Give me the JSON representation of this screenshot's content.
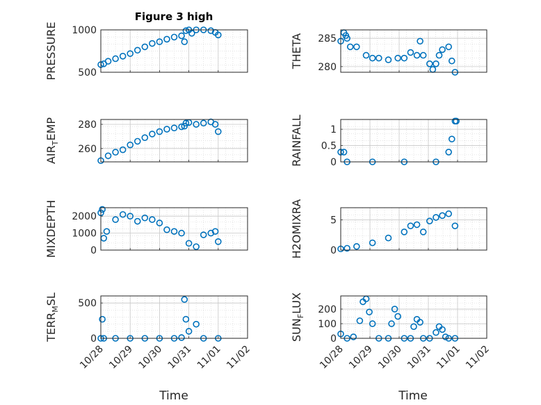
{
  "figure": {
    "title": "Figure 3 high",
    "x_axis_label": "Time",
    "marker_color": "#0072bd"
  },
  "chart_data": [
    {
      "type": "scatter",
      "ylabel": "PRESSURE",
      "xticks": [
        "10/28",
        "10/29",
        "10/30",
        "10/31",
        "11/01",
        "11/02"
      ],
      "xlim": [
        0,
        5
      ],
      "ylim": [
        500,
        1000
      ],
      "yticks": [
        500,
        1000
      ],
      "grid": true,
      "x": [
        0.0,
        0.1,
        0.25,
        0.5,
        0.75,
        1.0,
        1.25,
        1.5,
        1.75,
        2.0,
        2.25,
        2.5,
        2.75,
        2.85,
        2.9,
        3.0,
        3.1,
        3.25,
        3.5,
        3.75,
        3.9,
        4.0
      ],
      "y": [
        590,
        600,
        630,
        660,
        690,
        720,
        760,
        800,
        840,
        860,
        890,
        915,
        930,
        860,
        990,
        1000,
        960,
        1000,
        1000,
        990,
        970,
        940
      ]
    },
    {
      "type": "scatter",
      "ylabel": "THETA",
      "xticks": [
        "10/28",
        "10/29",
        "10/30",
        "10/31",
        "11/01",
        "11/02"
      ],
      "xlim": [
        0,
        2.3
      ],
      "ylim": [
        279,
        286.5
      ],
      "yticks": [
        280,
        285
      ],
      "grid": true,
      "x": [
        0.0,
        0.05,
        0.08,
        0.1,
        0.15,
        0.25,
        0.4,
        0.5,
        0.6,
        0.75,
        0.9,
        1.0,
        1.1,
        1.2,
        1.25,
        1.3,
        1.4,
        1.45,
        1.5,
        1.55,
        1.6,
        1.7,
        1.75,
        1.8
      ],
      "y": [
        284.5,
        286,
        285.5,
        285,
        283.5,
        283.5,
        282,
        281.5,
        281.5,
        281.2,
        281.5,
        281.5,
        282.5,
        282,
        284.5,
        282,
        280.5,
        279.5,
        280.5,
        282,
        283,
        283.5,
        281,
        279
      ]
    },
    {
      "type": "scatter",
      "ylabel": "AIR_TEMP",
      "xticks": [
        "10/28",
        "10/29",
        "10/30",
        "10/31",
        "11/01",
        "11/02"
      ],
      "xlim": [
        0,
        5
      ],
      "ylim": [
        249,
        284
      ],
      "yticks": [
        260,
        280
      ],
      "grid": true,
      "x": [
        0.0,
        0.25,
        0.5,
        0.75,
        1.0,
        1.25,
        1.5,
        1.75,
        2.0,
        2.25,
        2.5,
        2.75,
        2.85,
        2.9,
        3.0,
        3.25,
        3.5,
        3.75,
        3.9,
        4.0
      ],
      "y": [
        250,
        254,
        257,
        259,
        263,
        266,
        269,
        272,
        274,
        276,
        277,
        278,
        278.5,
        281,
        281.5,
        280,
        281,
        282,
        280,
        274
      ]
    },
    {
      "type": "scatter",
      "ylabel": "RAINFALL",
      "xticks": [
        "10/28",
        "10/29",
        "10/30",
        "10/31",
        "11/01",
        "11/02"
      ],
      "xlim": [
        0,
        2.3
      ],
      "ylim": [
        0,
        1.3
      ],
      "yticks": [
        0,
        0.5,
        1
      ],
      "grid": true,
      "x": [
        0.0,
        0.05,
        0.1,
        0.5,
        1.0,
        1.5,
        1.7,
        1.75,
        1.8,
        1.82
      ],
      "y": [
        0.3,
        0.3,
        0.0,
        0.0,
        0.0,
        0.0,
        0.3,
        0.7,
        1.25,
        1.25
      ]
    },
    {
      "type": "scatter",
      "ylabel": "MIXDEPTH",
      "xticks": [
        "10/28",
        "10/29",
        "10/30",
        "10/31",
        "11/01",
        "11/02"
      ],
      "xlim": [
        0,
        5
      ],
      "ylim": [
        0,
        2500
      ],
      "yticks": [
        0,
        1000,
        2000
      ],
      "grid": true,
      "x": [
        0.0,
        0.05,
        0.1,
        0.2,
        0.5,
        0.75,
        1.0,
        1.25,
        1.5,
        1.75,
        2.0,
        2.25,
        2.5,
        2.75,
        3.0,
        3.25,
        3.5,
        3.75,
        3.9,
        4.0
      ],
      "y": [
        2200,
        2400,
        700,
        1100,
        1800,
        2100,
        2000,
        1700,
        1900,
        1800,
        1600,
        1200,
        1100,
        1000,
        400,
        200,
        900,
        1000,
        1100,
        500
      ]
    },
    {
      "type": "scatter",
      "ylabel": "H2OMIXRA",
      "xticks": [
        "10/28",
        "10/29",
        "10/30",
        "10/31",
        "11/01",
        "11/02"
      ],
      "xlim": [
        0,
        2.3
      ],
      "ylim": [
        0,
        7
      ],
      "yticks": [
        0,
        5
      ],
      "grid": true,
      "x": [
        0.0,
        0.1,
        0.25,
        0.5,
        0.75,
        1.0,
        1.1,
        1.2,
        1.3,
        1.4,
        1.5,
        1.6,
        1.7,
        1.8
      ],
      "y": [
        0.2,
        0.3,
        0.6,
        1.2,
        2.0,
        3.0,
        4.0,
        4.2,
        3.0,
        4.8,
        5.4,
        5.7,
        6.0,
        4.0
      ]
    },
    {
      "type": "scatter",
      "ylabel": "TERR_MSL",
      "xticks": [
        "10/28",
        "10/29",
        "10/30",
        "10/31",
        "11/01",
        "11/02"
      ],
      "xlim": [
        0,
        5
      ],
      "ylim": [
        0,
        600
      ],
      "yticks": [
        0,
        500
      ],
      "grid": true,
      "x": [
        0.0,
        0.05,
        0.1,
        0.5,
        1.0,
        1.5,
        2.0,
        2.5,
        2.75,
        2.85,
        2.9,
        3.0,
        3.25,
        3.5,
        4.0
      ],
      "y": [
        0,
        270,
        0,
        0,
        0,
        0,
        0,
        0,
        10,
        550,
        270,
        100,
        200,
        0,
        0
      ]
    },
    {
      "type": "scatter",
      "ylabel": "SUN_FLUX",
      "xticks": [
        "10/28",
        "10/29",
        "10/30",
        "10/31",
        "11/01",
        "11/02"
      ],
      "xlim": [
        0,
        2.3
      ],
      "ylim": [
        0,
        290
      ],
      "yticks": [
        0,
        100,
        200
      ],
      "grid": true,
      "x": [
        0.0,
        0.1,
        0.2,
        0.3,
        0.35,
        0.4,
        0.45,
        0.5,
        0.6,
        0.75,
        0.8,
        0.85,
        0.9,
        1.0,
        1.1,
        1.15,
        1.2,
        1.25,
        1.3,
        1.4,
        1.5,
        1.55,
        1.6,
        1.65,
        1.7,
        1.8
      ],
      "y": [
        30,
        0,
        10,
        120,
        250,
        270,
        180,
        100,
        0,
        0,
        100,
        200,
        150,
        0,
        0,
        80,
        130,
        110,
        0,
        0,
        40,
        80,
        60,
        10,
        0,
        0
      ]
    }
  ]
}
